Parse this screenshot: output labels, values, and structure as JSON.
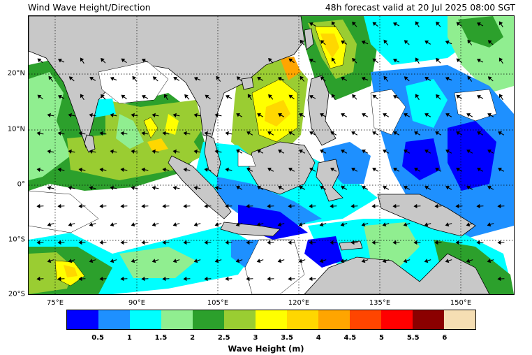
{
  "header": {
    "title": "Wind Wave Height/Direction",
    "forecast": "48h forecast valid at 20 Jul 2025 08:00 SGT"
  },
  "map": {
    "lat_labels": [
      "20°N",
      "10°N",
      "0°",
      "10°S",
      "20°S"
    ],
    "lon_labels": [
      "75°E",
      "90°E",
      "105°E",
      "120°E",
      "135°E",
      "150°E"
    ],
    "land_color": "#c8c8c8",
    "grid_style": "dotted"
  },
  "colorbar": {
    "label": "Wave Height (m)",
    "ticks": [
      "0.5",
      "1",
      "1.5",
      "2",
      "2.5",
      "3",
      "3.5",
      "4",
      "4.5",
      "5",
      "5.5",
      "6"
    ],
    "colors": [
      "#0000ff",
      "#1e90ff",
      "#00ffff",
      "#90ee90",
      "#2ca02c",
      "#9acd32",
      "#ffff00",
      "#ffd700",
      "#ffa500",
      "#ff4500",
      "#ff0000",
      "#8b0000",
      "#f5deb3"
    ]
  }
}
